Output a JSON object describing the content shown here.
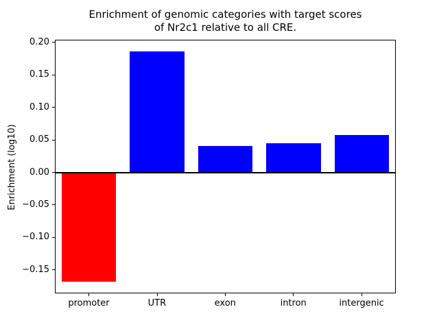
{
  "chart_data": {
    "type": "bar",
    "title": "Enrichment of genomic categories with target scores\nof Nr2c1 relative to all CRE.",
    "xlabel": "",
    "ylabel": "Enrichment (log10)",
    "categories": [
      "promoter",
      "UTR",
      "exon",
      "intron",
      "intergenic"
    ],
    "values": [
      -0.168,
      0.186,
      0.041,
      0.045,
      0.057
    ],
    "bar_colors": [
      "#ff0000",
      "#0000ff",
      "#0000ff",
      "#0000ff",
      "#0000ff"
    ],
    "ylim": [
      -0.186,
      0.204
    ],
    "yticks": [
      0.2,
      0.15,
      0.1,
      0.05,
      0.0,
      -0.05,
      -0.1,
      -0.15
    ],
    "ytick_labels": [
      "0.20",
      "0.15",
      "0.10",
      "0.05",
      "0.00",
      "−0.05",
      "−0.10",
      "−0.15"
    ],
    "grid": false,
    "legend": false,
    "zero_line": true,
    "background": "#ffffff"
  }
}
